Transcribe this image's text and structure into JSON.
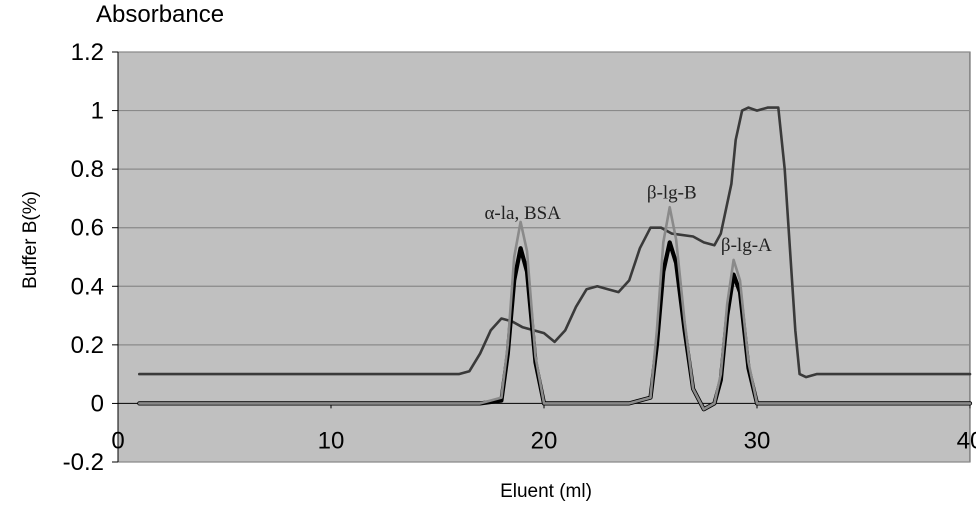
{
  "chart_data": {
    "type": "line",
    "title": "Absorbance",
    "xlabel": "Eluent (ml)",
    "ylabel": "Buffer B(%)",
    "xlim": [
      0,
      40
    ],
    "ylim": [
      -0.2,
      1.2
    ],
    "x_ticks": [
      "0",
      "10",
      "20",
      "30",
      "40"
    ],
    "y_ticks": [
      "-0.2",
      "0",
      "0.2",
      "0.4",
      "0.6",
      "0.8",
      "1",
      "1.2"
    ],
    "grid": "horizontal",
    "colors": {
      "plot_bg": "#c0c0c0",
      "grid": "#8a8a8a",
      "buffer_line": "#3a3a3a",
      "absorbance_a": "#000000",
      "absorbance_b": "#8a8a8a"
    },
    "annotations": [
      {
        "text": "α-la, BSA",
        "x": 19,
        "y": 0.63
      },
      {
        "text": "β-lg-B",
        "x": 26,
        "y": 0.7
      },
      {
        "text": "β-lg-A",
        "x": 29.5,
        "y": 0.52
      }
    ],
    "series": [
      {
        "x": [
          1,
          16,
          16.5,
          17,
          17.5,
          18,
          18.5,
          19,
          20,
          20.5,
          21,
          21.5,
          22,
          22.5,
          23,
          23.5,
          24,
          24.5,
          25,
          25.5,
          26,
          27,
          27.5,
          28,
          28.3,
          28.8,
          29,
          29.3,
          29.6,
          30,
          30.5,
          31,
          31.3,
          31.8,
          32,
          32.3,
          32.8,
          33.5,
          40
        ],
        "y": [
          0.1,
          0.1,
          0.11,
          0.17,
          0.25,
          0.29,
          0.28,
          0.26,
          0.24,
          0.21,
          0.25,
          0.33,
          0.39,
          0.4,
          0.39,
          0.38,
          0.42,
          0.53,
          0.6,
          0.6,
          0.58,
          0.57,
          0.55,
          0.54,
          0.58,
          0.75,
          0.9,
          1.0,
          1.01,
          1.0,
          1.01,
          1.01,
          0.8,
          0.25,
          0.1,
          0.09,
          0.1,
          0.1,
          0.1
        ]
      },
      {
        "x": [
          1,
          16,
          17,
          18,
          18.3,
          18.6,
          18.9,
          19.2,
          19.6,
          20,
          21,
          24,
          25,
          25.3,
          25.6,
          25.9,
          26.2,
          26.6,
          27,
          27.5,
          28,
          28.3,
          28.6,
          28.9,
          29.2,
          29.6,
          30,
          31,
          40
        ],
        "y": [
          0,
          0,
          0.0,
          0.01,
          0.17,
          0.42,
          0.53,
          0.45,
          0.14,
          0.0,
          0,
          0,
          0.02,
          0.2,
          0.45,
          0.55,
          0.48,
          0.25,
          0.05,
          -0.02,
          0.0,
          0.08,
          0.3,
          0.44,
          0.38,
          0.12,
          0.0,
          0,
          0
        ]
      },
      {
        "x": [
          1,
          16,
          17,
          18,
          18.3,
          18.6,
          18.9,
          19.2,
          19.6,
          20,
          21,
          24,
          25,
          25.3,
          25.6,
          25.9,
          26.2,
          26.6,
          27,
          27.5,
          28,
          28.3,
          28.6,
          28.9,
          29.2,
          29.6,
          30,
          31,
          40
        ],
        "y": [
          0,
          0,
          0.0,
          0.02,
          0.2,
          0.5,
          0.62,
          0.52,
          0.16,
          0.0,
          0,
          0,
          0.02,
          0.25,
          0.55,
          0.67,
          0.56,
          0.28,
          0.05,
          -0.02,
          0.0,
          0.1,
          0.34,
          0.49,
          0.42,
          0.14,
          0.0,
          0,
          0
        ]
      }
    ]
  }
}
